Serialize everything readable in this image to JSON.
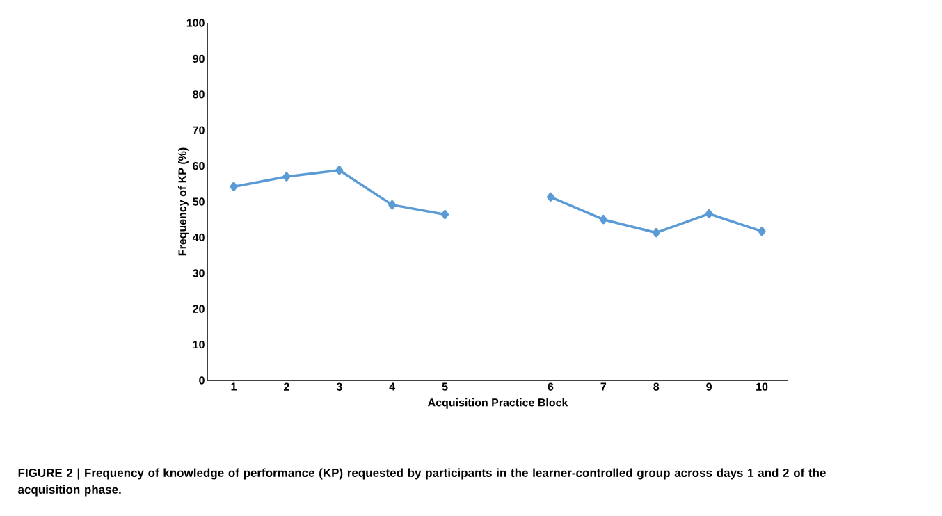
{
  "chart_data": {
    "type": "line",
    "xlabel": "Acquisition Practice Block",
    "ylabel": "Frequency of KP (%)",
    "categories": [
      "1",
      "2",
      "3",
      "4",
      "5",
      null,
      "6",
      "7",
      "8",
      "9",
      "10"
    ],
    "values": [
      54.2,
      57,
      58.8,
      49.1,
      46.4,
      null,
      51.3,
      45,
      41.3,
      46.6,
      41.7
    ],
    "color": "#5b9bd5",
    "marker": "diamond",
    "line_style": "solid",
    "ylim": [
      0,
      100
    ],
    "yticks": [
      0,
      10,
      20,
      30,
      40,
      50,
      60,
      70,
      80,
      90,
      100
    ],
    "grid": false,
    "annotations": [
      "FIGURE 2 | Frequency of knowledge of performance (KP) requested by participants in the learner-controlled group across days 1 and 2 of the acquisition phase."
    ]
  }
}
